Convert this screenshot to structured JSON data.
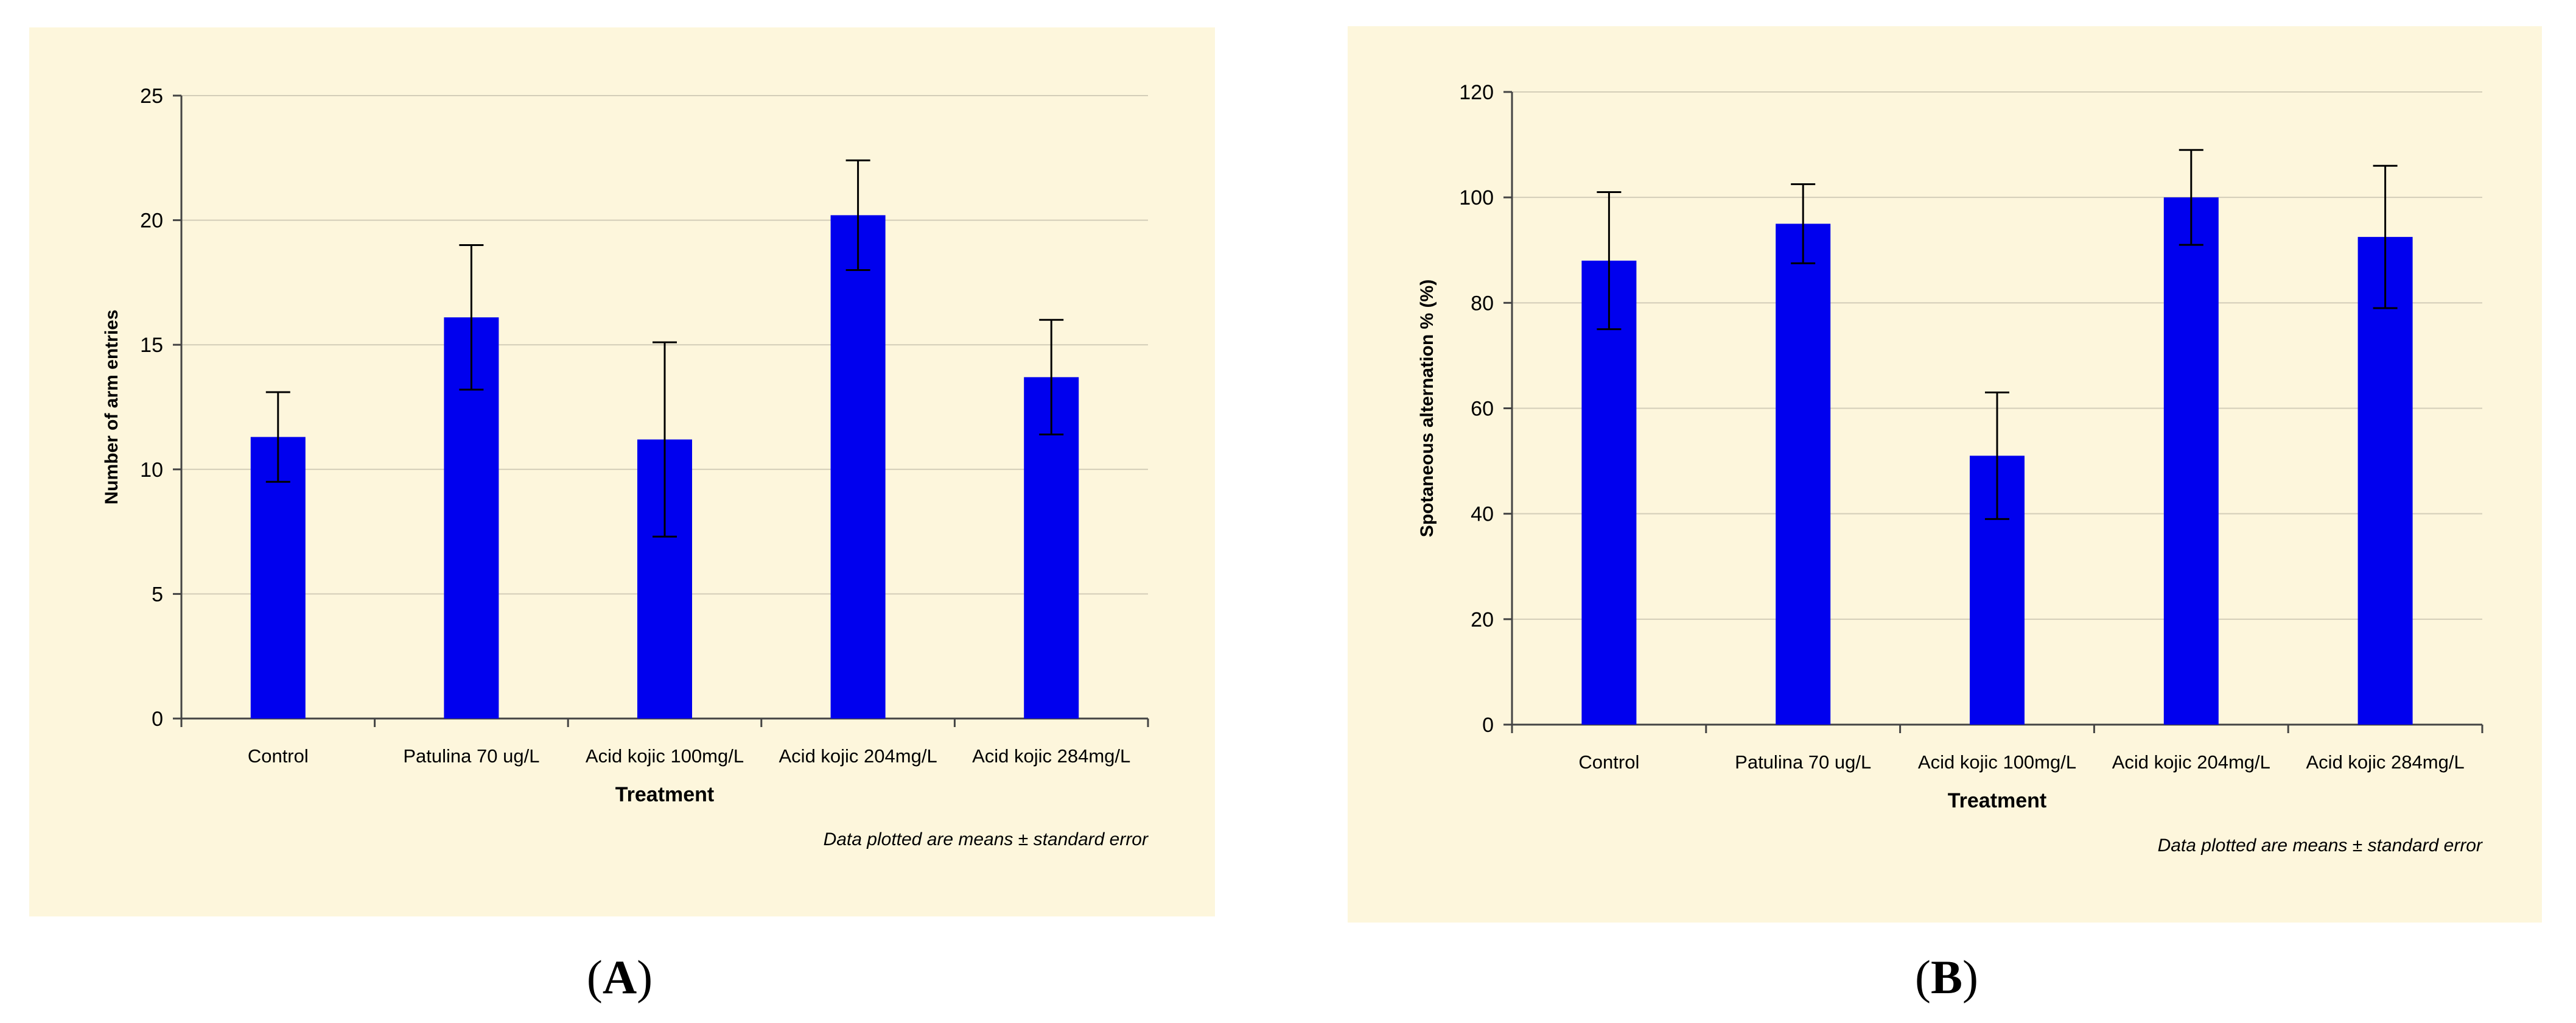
{
  "chart_data": [
    {
      "type": "bar",
      "panel_label": "A",
      "categories": [
        "Control",
        "Patulina 70 ug/L",
        "Acid kojic 100mg/L",
        "Acid kojic 204mg/L",
        "Acid kojic 284mg/L"
      ],
      "values": [
        11.3,
        16.1,
        11.2,
        20.2,
        13.7
      ],
      "errors": [
        1.8,
        2.9,
        3.9,
        2.2,
        2.3
      ],
      "ylim": [
        0,
        25
      ],
      "yticks": [
        0,
        5,
        10,
        15,
        20,
        25
      ],
      "xlabel": "Treatment",
      "ylabel": "Number of arm entries",
      "note": "Data plotted are means ± standard error",
      "bar_color": "#0000ee",
      "grid": true
    },
    {
      "type": "bar",
      "panel_label": "B",
      "categories": [
        "Control",
        "Patulina 70 ug/L",
        "Acid kojic 100mg/L",
        "Acid kojic 204mg/L",
        "Acid kojic 284mg/L"
      ],
      "values": [
        88,
        95,
        51,
        100,
        92.5
      ],
      "errors": [
        13,
        7.5,
        12,
        9,
        13.5
      ],
      "ylim": [
        0,
        120
      ],
      "yticks": [
        0,
        20,
        40,
        60,
        80,
        100,
        120
      ],
      "xlabel": "Treatment",
      "ylabel": "Spotaneous alternation % (%)",
      "note": "Data plotted are means ± standard error",
      "bar_color": "#0000ee",
      "grid": true
    }
  ]
}
